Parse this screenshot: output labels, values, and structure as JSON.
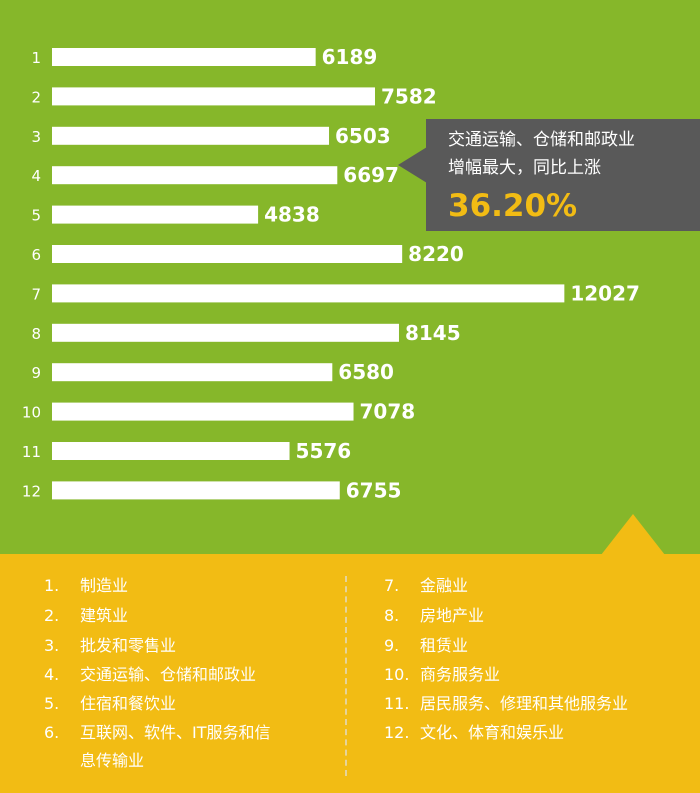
{
  "chart_data": {
    "type": "bar",
    "orientation": "horizontal",
    "categories": [
      "1",
      "2",
      "3",
      "4",
      "5",
      "6",
      "7",
      "8",
      "9",
      "10",
      "11",
      "12"
    ],
    "values": [
      6189,
      7582,
      6503,
      6697,
      4838,
      8220,
      12027,
      8145,
      6580,
      7078,
      5576,
      6755
    ],
    "bar_color": "#ffffff",
    "label_color": "#ffffff",
    "background_color": "#86b72a"
  },
  "callout": {
    "line1": "交通运输、仓储和邮政业",
    "line2": "增幅最大，同比上涨",
    "value": "36.20%",
    "value_color": "#f2bc14",
    "box_color": "#595959"
  },
  "legend": {
    "background_color": "#f2bc14",
    "left": [
      {
        "num": "1.",
        "text": "制造业"
      },
      {
        "num": "2.",
        "text": "建筑业"
      },
      {
        "num": "3.",
        "text": "批发和零售业"
      },
      {
        "num": "4.",
        "text": "交通运输、仓储和邮政业"
      },
      {
        "num": "5.",
        "text": "住宿和餐饮业"
      },
      {
        "num": "6.",
        "text": "互联网、软件、IT服务和信",
        "text2": "息传输业"
      }
    ],
    "right": [
      {
        "num": "7.",
        "text": "金融业"
      },
      {
        "num": "8.",
        "text": "房地产业"
      },
      {
        "num": "9.",
        "text": "租赁业"
      },
      {
        "num": "10.",
        "text": "商务服务业"
      },
      {
        "num": "11.",
        "text": "居民服务、修理和其他服务业"
      },
      {
        "num": "12.",
        "text": "文化、体育和娱乐业"
      }
    ]
  }
}
